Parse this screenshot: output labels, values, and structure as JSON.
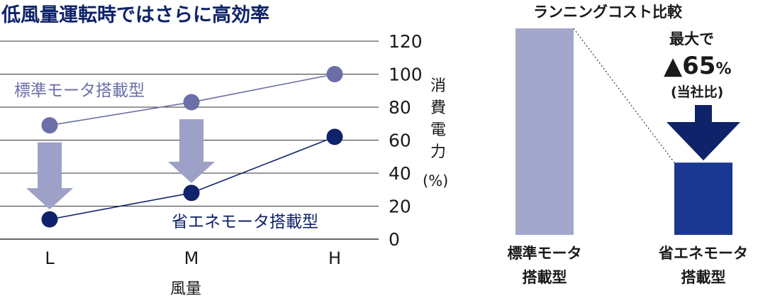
{
  "line_chart": {
    "title": "低風量運転時ではさらに高効率",
    "xlabel": "風量",
    "ylabel": "消費電力",
    "ylabel_unit": "(%)",
    "standard_label": "標準モータ搭載型",
    "eco_label": "省エネモータ搭載型"
  },
  "bar_chart": {
    "title": "ランニングコスト比較",
    "annotation_line1": "最大で",
    "annotation_value": "▲65",
    "annotation_unit": "%",
    "annotation_line3": "(当社比)",
    "bar1_label_line1": "標準モータ",
    "bar1_label_line2": "搭載型",
    "bar2_label_line1": "省エネモータ",
    "bar2_label_line2": "搭載型"
  },
  "colors": {
    "standard": "#6b6fa8",
    "eco": "#0e2369",
    "arrow": "#9da1c8",
    "bar_standard": "#a3a7cc",
    "bar_eco": "#1a3891",
    "grid": "#333333"
  },
  "chart_data": [
    {
      "type": "line",
      "title": "低風量運転時ではさらに高効率",
      "xlabel": "風量",
      "ylabel": "消費電力 (%)",
      "categories": [
        "L",
        "M",
        "H"
      ],
      "ylim": [
        0,
        120
      ],
      "yticks": [
        0,
        20,
        40,
        60,
        80,
        100,
        120
      ],
      "grid": true,
      "series": [
        {
          "name": "標準モータ搭載型",
          "values": [
            69,
            83,
            100
          ]
        },
        {
          "name": "省エネモータ搭載型",
          "values": [
            12,
            28,
            62
          ]
        }
      ]
    },
    {
      "type": "bar",
      "title": "ランニングコスト比較",
      "categories": [
        "標準モータ搭載型",
        "省エネモータ搭載型"
      ],
      "values": [
        100,
        35
      ],
      "annotation": "最大で▲65%(当社比)"
    }
  ]
}
